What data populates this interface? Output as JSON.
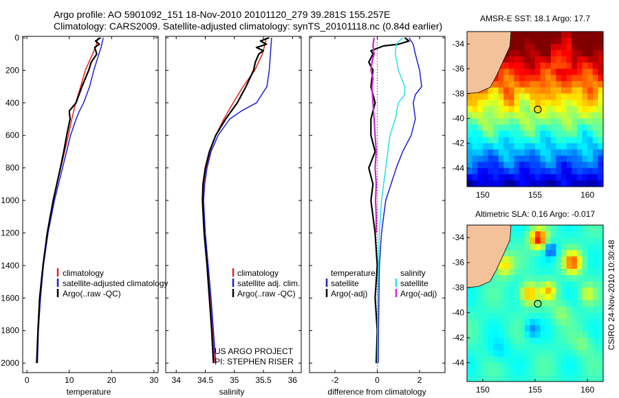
{
  "header": {
    "line1": "Argo profile: AO 5901092_151 18-Nov-2010 20101120_279 39.281S 155.257E",
    "line2": "Climatology: CARS2009. Satellite-adjusted climatology: synTS_20101118.nc (0.84d earlier)"
  },
  "side_label": "CSIRO 24-Nov-2010 10:30:48",
  "project": {
    "line1": "US ARGO PROJECT",
    "line2": "PI: STEPHEN RISER"
  },
  "colors": {
    "climatology": "#e8201c",
    "satellite": "#1c1cd8",
    "argo": "#000000",
    "sat_salinity": "#22e0e8",
    "argo_salinity": "#d020d0",
    "land": "#f4c29a"
  },
  "chart_data": [
    {
      "id": "temperature",
      "type": "line",
      "xlabel": "temperature",
      "ylabel": "",
      "xlim": [
        -1,
        31
      ],
      "ylim": [
        2050,
        0
      ],
      "xticks": [
        0,
        10,
        20,
        30
      ],
      "xtick_labels": [
        "0",
        "10",
        "20",
        "30"
      ],
      "yticks": [
        0,
        200,
        400,
        600,
        800,
        1000,
        1200,
        1400,
        1600,
        1800,
        2000
      ],
      "ytick_labels": [
        "0",
        "200",
        "400",
        "600",
        "800",
        "1000",
        "1200",
        "1400",
        "1600",
        "1800",
        "2000"
      ],
      "legend": [
        "climatology",
        "satellite-adjusted climatology",
        "Argo(..raw -QC)"
      ],
      "series": [
        {
          "name": "climatology",
          "depth": [
            0,
            50,
            100,
            200,
            300,
            400,
            500,
            600,
            700,
            800,
            1000,
            1200,
            1400,
            1600,
            1800,
            2000
          ],
          "values": [
            16.8,
            16.3,
            15.5,
            13.8,
            12.7,
            11.5,
            10.6,
            9.8,
            8.9,
            8.0,
            6.2,
            4.8,
            3.8,
            3.1,
            2.7,
            2.4
          ]
        },
        {
          "name": "satellite-adjusted climatology",
          "depth": [
            0,
            50,
            100,
            200,
            300,
            400,
            450,
            500,
            600,
            800,
            1000,
            1200,
            1400,
            1600,
            1800,
            2000
          ],
          "values": [
            18.0,
            17.6,
            17.0,
            15.8,
            14.8,
            13.4,
            12.4,
            11.6,
            10.3,
            8.4,
            6.5,
            5.0,
            3.9,
            3.2,
            2.7,
            2.5
          ]
        },
        {
          "name": "Argo(..raw -QC)",
          "depth": [
            0,
            20,
            40,
            60,
            100,
            150,
            200,
            300,
            400,
            450,
            500,
            600,
            700,
            800,
            1000,
            1200,
            1400,
            1600,
            1800,
            2000
          ],
          "values": [
            17.4,
            16.2,
            17.1,
            16.0,
            16.5,
            15.2,
            14.6,
            13.0,
            11.6,
            10.0,
            10.2,
            9.4,
            8.7,
            7.9,
            6.2,
            4.8,
            3.8,
            3.0,
            2.6,
            2.3
          ]
        }
      ]
    },
    {
      "id": "salinity",
      "type": "line",
      "xlabel": "salinity",
      "ylabel": "",
      "xlim": [
        33.82,
        36.15
      ],
      "ylim": [
        2050,
        0
      ],
      "xticks": [
        34,
        34.5,
        35,
        35.5,
        36
      ],
      "xtick_labels": [
        "34",
        "34.5",
        "35",
        "35.5",
        "36"
      ],
      "legend": [
        "climatology",
        "satellite adj. clim.",
        "Argo(..raw -QC)"
      ],
      "series": [
        {
          "name": "climatology",
          "depth": [
            0,
            50,
            100,
            200,
            300,
            400,
            500,
            600,
            700,
            800,
            900,
            1000,
            1100,
            1200,
            1400,
            1600,
            1800,
            2000
          ],
          "values": [
            35.55,
            35.52,
            35.48,
            35.35,
            35.15,
            34.98,
            34.82,
            34.68,
            34.58,
            34.52,
            34.48,
            34.46,
            34.47,
            34.49,
            34.54,
            34.59,
            34.63,
            34.66
          ]
        },
        {
          "name": "satellite adj. clim.",
          "depth": [
            0,
            50,
            100,
            200,
            300,
            400,
            450,
            500,
            600,
            700,
            800,
            900,
            1000,
            1200,
            1400,
            1600,
            1800,
            2000
          ],
          "values": [
            35.64,
            35.63,
            35.62,
            35.6,
            35.56,
            35.38,
            35.12,
            34.92,
            34.72,
            34.6,
            34.53,
            34.49,
            34.47,
            34.5,
            34.55,
            34.6,
            34.64,
            34.68
          ]
        },
        {
          "name": "Argo(..raw -QC)",
          "depth": [
            0,
            20,
            40,
            60,
            80,
            100,
            150,
            200,
            300,
            400,
            500,
            600,
            700,
            800,
            900,
            1000,
            1200,
            1400,
            1600,
            1800,
            2000
          ],
          "values": [
            35.6,
            35.45,
            35.55,
            35.38,
            35.5,
            35.42,
            35.36,
            35.33,
            35.2,
            35.05,
            34.85,
            34.68,
            34.57,
            34.5,
            34.46,
            34.45,
            34.48,
            34.53,
            34.57,
            34.61,
            34.64
          ]
        }
      ]
    },
    {
      "id": "difference",
      "type": "line",
      "xlabel": "difference from climatology",
      "ylabel": "",
      "xlim": [
        -3.2,
        3.2
      ],
      "ylim": [
        2050,
        0
      ],
      "xticks": [
        -2,
        0,
        2
      ],
      "xtick_labels": [
        "-2",
        "0",
        "2"
      ],
      "legend": {
        "left_title": "temperature",
        "left": [
          "satellite",
          "Argo(-adj)"
        ],
        "right_title": "salinity",
        "right": [
          "satellite",
          "Argo(-adj)"
        ]
      },
      "series": [
        {
          "name": "temperature satellite",
          "depth": [
            0,
            40,
            100,
            150,
            200,
            300,
            350,
            400,
            500,
            600,
            700,
            800,
            1000,
            1200,
            1400,
            1600,
            1800,
            2000
          ],
          "values": [
            1.5,
            1.7,
            1.8,
            1.9,
            2.0,
            2.1,
            1.8,
            1.7,
            1.8,
            1.6,
            1.2,
            0.9,
            0.4,
            0.2,
            0.1,
            0.08,
            0.06,
            0.05
          ]
        },
        {
          "name": "temperature Argo(-adj)",
          "depth": [
            0,
            20,
            40,
            50,
            80,
            100,
            150,
            200,
            300,
            400,
            500,
            600,
            700,
            800,
            900,
            1000,
            1200,
            1400,
            1600,
            1800,
            2000
          ],
          "values": [
            1.3,
            1.5,
            1.0,
            0.3,
            -0.3,
            -0.2,
            -0.4,
            -0.2,
            -0.3,
            -0.1,
            -0.3,
            -0.3,
            -0.1,
            -0.4,
            -0.2,
            -0.3,
            -0.1,
            0.0,
            -0.1,
            0.0,
            -0.05
          ]
        },
        {
          "name": "salinity satellite",
          "depth": [
            0,
            40,
            100,
            200,
            300,
            350,
            400,
            500,
            600,
            700,
            800,
            1000,
            1200,
            1400,
            1600,
            1800,
            2000
          ],
          "values": [
            1.2,
            0.9,
            0.85,
            1.0,
            1.3,
            1.3,
            1.0,
            0.85,
            0.6,
            0.5,
            0.4,
            0.2,
            0.1,
            0.05,
            0.02,
            0.02,
            0.0
          ]
        },
        {
          "name": "salinity Argo(-adj)",
          "depth": [
            0,
            50,
            100,
            150,
            200,
            250,
            300,
            400,
            500,
            600,
            700,
            800,
            900,
            1000,
            1100,
            1200
          ],
          "values": [
            -0.15,
            -0.2,
            -0.15,
            -0.25,
            -0.3,
            -0.2,
            -0.25,
            -0.2,
            -0.15,
            -0.1,
            -0.05,
            -0.1,
            -0.05,
            -0.08,
            -0.05,
            -0.05
          ]
        }
      ]
    }
  ],
  "maps": [
    {
      "id": "sst-map",
      "type": "heatmap",
      "title": "AMSR-E SST: 18.1 Argo: 17.7",
      "lon_range": [
        148.5,
        161.5
      ],
      "lat_range": [
        -45.5,
        -33
      ],
      "xticks": [
        150,
        155,
        160
      ],
      "xtick_labels": [
        "150",
        "155",
        "160"
      ],
      "yticks": [
        -34,
        -36,
        -38,
        -40,
        -42,
        -44
      ],
      "ytick_labels": [
        "-34",
        "-36",
        "-38",
        "-40",
        "-42",
        "-44"
      ],
      "float_marker": {
        "lon": 155.257,
        "lat": -39.281
      },
      "argo_value": 17.7,
      "sat_value": 18.1
    },
    {
      "id": "sla-map",
      "type": "heatmap",
      "title": "Altimetric SLA: 0.16 Argo: -0.017",
      "lon_range": [
        148.5,
        161.5
      ],
      "lat_range": [
        -45.5,
        -33
      ],
      "xticks": [
        150,
        155,
        160
      ],
      "xtick_labels": [
        "150",
        "155",
        "160"
      ],
      "yticks": [
        -34,
        -36,
        -38,
        -40,
        -42,
        -44
      ],
      "ytick_labels": [
        "-34",
        "-36",
        "-38",
        "-40",
        "-42",
        "-44"
      ],
      "float_marker": {
        "lon": 155.257,
        "lat": -39.281
      },
      "argo_value": -0.017,
      "sat_value": 0.16
    }
  ]
}
